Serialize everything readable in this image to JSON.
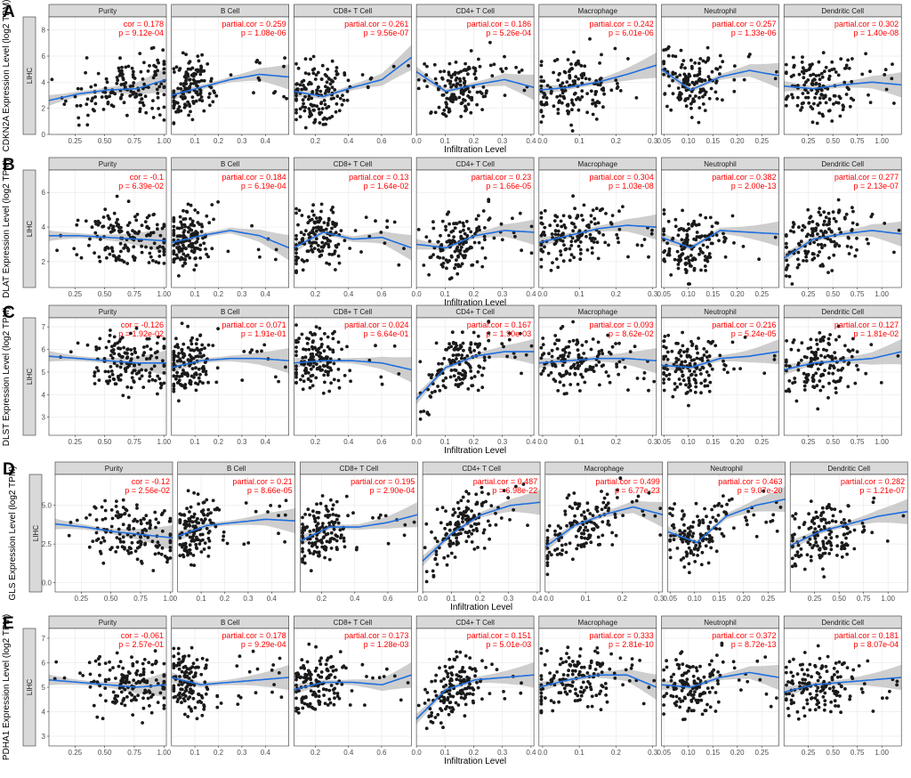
{
  "panels": [
    {
      "letter": "A",
      "ylabel": "CDKN2A Expression Level (log2 TPM)",
      "cancer": "LIHC",
      "xlabel": "Infiltration Level",
      "ylim": [
        0,
        9
      ],
      "yticks": [
        0,
        2,
        4,
        6,
        8
      ],
      "ytick_labels": [
        "0",
        "2",
        "4",
        "6",
        "8"
      ],
      "trends": [
        [
          2.6,
          3.1,
          3.4,
          3.5,
          4.2
        ],
        [
          3.0,
          3.6,
          4.2,
          4.6,
          4.4
        ],
        [
          3.3,
          2.9,
          3.6,
          4.2,
          5.9
        ],
        [
          4.8,
          3.3,
          3.8,
          4.2,
          3.6
        ],
        [
          3.4,
          3.6,
          4.0,
          4.6,
          5.3
        ],
        [
          5.0,
          3.4,
          4.4,
          4.9,
          4.5
        ],
        [
          3.7,
          3.5,
          3.8,
          4.0,
          3.8
        ]
      ],
      "stats": [
        [
          "cor = 0.178",
          "p = 9.12e-04"
        ],
        [
          "partial.cor = 0.259",
          "p = 1.08e-06"
        ],
        [
          "partial.cor = 0.261",
          "p = 9.56e-07"
        ],
        [
          "partial.cor = 0.186",
          "p = 5.26e-04"
        ],
        [
          "partial.cor = 0.242",
          "p = 6.01e-06"
        ],
        [
          "partial.cor = 0.257",
          "p = 1.33e-06"
        ],
        [
          "partial.cor = 0.302",
          "p = 1.40e-08"
        ]
      ]
    },
    {
      "letter": "B",
      "ylabel": "DLAT Expression Level (log2 TPM)",
      "cancer": "LIHC",
      "xlabel": "Infiltration Level",
      "ylim": [
        0.5,
        7.3
      ],
      "yticks": [
        2,
        4,
        6
      ],
      "ytick_labels": [
        "2",
        "4",
        "6"
      ],
      "trends": [
        [
          3.5,
          3.5,
          3.4,
          3.3,
          3.2
        ],
        [
          3.1,
          3.5,
          3.8,
          3.5,
          2.8
        ],
        [
          2.8,
          3.7,
          3.3,
          3.4,
          2.8
        ],
        [
          3.0,
          2.8,
          3.5,
          3.8,
          3.7
        ],
        [
          3.1,
          3.5,
          3.9,
          4.1,
          4.0
        ],
        [
          3.4,
          2.8,
          3.8,
          3.7,
          3.6
        ],
        [
          2.2,
          3.3,
          3.6,
          3.8,
          3.6
        ]
      ],
      "stats": [
        [
          "cor = -0.1",
          "p = 6.39e-02"
        ],
        [
          "partial.cor = 0.184",
          "p = 6.19e-04"
        ],
        [
          "partial.cor = 0.13",
          "p = 1.64e-02"
        ],
        [
          "partial.cor = 0.23",
          "p = 1.66e-05"
        ],
        [
          "partial.cor = 0.304",
          "p = 1.03e-08"
        ],
        [
          "partial.cor = 0.382",
          "p = 2.00e-13"
        ],
        [
          "partial.cor = 0.277",
          "p = 2.13e-07"
        ]
      ]
    },
    {
      "letter": "C",
      "ylabel": "DLST Expression Level (log2 TPM)",
      "cancer": "LIHC",
      "xlabel": "Infiltration Level",
      "ylim": [
        2.2,
        7.4
      ],
      "yticks": [
        3,
        4,
        5,
        6,
        7
      ],
      "ytick_labels": [
        "3",
        "4",
        "5",
        "6",
        "7"
      ],
      "trends": [
        [
          5.7,
          5.6,
          5.5,
          5.4,
          5.4
        ],
        [
          5.2,
          5.5,
          5.6,
          5.6,
          5.5
        ],
        [
          5.4,
          5.5,
          5.5,
          5.4,
          5.1
        ],
        [
          3.8,
          5.2,
          5.7,
          5.9,
          5.9
        ],
        [
          5.4,
          5.5,
          5.6,
          5.6,
          5.5
        ],
        [
          5.3,
          5.2,
          5.6,
          5.7,
          5.9
        ],
        [
          5.1,
          5.4,
          5.5,
          5.6,
          5.9
        ]
      ],
      "stats": [
        [
          "cor = -0.126",
          "p = 1.92e-02"
        ],
        [
          "partial.cor = 0.071",
          "p = 1.91e-01"
        ],
        [
          "partial.cor = 0.024",
          "p = 6.64e-01"
        ],
        [
          "partial.cor = 0.167",
          "p = 1.90e-03"
        ],
        [
          "partial.cor = 0.093",
          "p = 8.62e-02"
        ],
        [
          "partial.cor = 0.216",
          "p = 5.24e-05"
        ],
        [
          "partial.cor = 0.127",
          "p = 1.81e-02"
        ]
      ]
    },
    {
      "letter": "D",
      "ylabel": "GLS Expression Level (log2 TPM)",
      "cancer": "LIHC",
      "xlabel": "Infiltration Level",
      "ylim": [
        -0.6,
        7.0
      ],
      "yticks": [
        0.0,
        2.5,
        5.0
      ],
      "ytick_labels": [
        "0.0",
        "2.5",
        "5.0"
      ],
      "trends": [
        [
          3.8,
          3.6,
          3.3,
          3.1,
          2.9
        ],
        [
          3.0,
          3.7,
          3.9,
          4.1,
          4.0
        ],
        [
          2.7,
          3.6,
          3.6,
          3.9,
          4.4
        ],
        [
          1.4,
          3.2,
          4.4,
          5.0,
          5.2
        ],
        [
          2.3,
          3.7,
          4.4,
          4.9,
          4.4
        ],
        [
          3.3,
          2.6,
          4.3,
          5.0,
          5.4
        ],
        [
          2.4,
          3.3,
          3.8,
          4.3,
          4.6
        ]
      ],
      "stats": [
        [
          "cor = -0.12",
          "p = 2.56e-02"
        ],
        [
          "partial.cor = 0.21",
          "p = 8.66e-05"
        ],
        [
          "partial.cor = 0.195",
          "p = 2.90e-04"
        ],
        [
          "partial.cor = 0.487",
          "p = 6.98e-22"
        ],
        [
          "partial.cor = 0.499",
          "p = 6.77e-23"
        ],
        [
          "partial.cor = 0.463",
          "p = 9.07e-20"
        ],
        [
          "partial.cor = 0.282",
          "p = 1.21e-07"
        ]
      ]
    },
    {
      "letter": "E",
      "ylabel": "PDHA1 Expression Level (log2 TPM)",
      "cancer": "LIHC",
      "xlabel": "Infiltration Level",
      "ylim": [
        2.6,
        7.4
      ],
      "yticks": [
        3,
        4,
        5,
        6,
        7
      ],
      "ytick_labels": [
        "3",
        "4",
        "5",
        "6",
        "7"
      ],
      "trends": [
        [
          5.3,
          5.2,
          5.1,
          5.0,
          5.1
        ],
        [
          5.4,
          5.1,
          5.2,
          5.3,
          5.4
        ],
        [
          4.9,
          5.2,
          5.2,
          5.1,
          5.5
        ],
        [
          3.7,
          4.9,
          5.3,
          5.4,
          5.5
        ],
        [
          5.0,
          5.3,
          5.5,
          5.5,
          5.0
        ],
        [
          5.1,
          5.0,
          5.4,
          5.6,
          5.4
        ],
        [
          4.8,
          5.1,
          5.2,
          5.3,
          5.4
        ]
      ],
      "stats": [
        [
          "cor = -0.061",
          "p = 2.57e-01"
        ],
        [
          "partial.cor = 0.178",
          "p = 9.29e-04"
        ],
        [
          "partial.cor = 0.173",
          "p = 1.28e-03"
        ],
        [
          "partial.cor = 0.151",
          "p = 5.01e-03"
        ],
        [
          "partial.cor = 0.333",
          "p = 2.81e-10"
        ],
        [
          "partial.cor = 0.372",
          "p = 8.72e-13"
        ],
        [
          "partial.cor = 0.181",
          "p = 8.07e-04"
        ]
      ]
    }
  ],
  "cells": [
    {
      "name": "Purity",
      "xlim": [
        0.03,
        1.02
      ],
      "xticks": [
        0.25,
        0.5,
        0.75,
        1.0
      ],
      "xtick_labels": [
        "0.25",
        "0.50",
        "0.75",
        "1.00"
      ]
    },
    {
      "name": "B Cell",
      "xlim": [
        0.0,
        0.5
      ],
      "xticks": [
        0.1,
        0.2,
        0.3,
        0.4
      ],
      "xtick_labels": [
        "0.1",
        "0.2",
        "0.3",
        "0.4"
      ]
    },
    {
      "name": "CD8+ T Cell",
      "xlim": [
        0.07,
        0.78
      ],
      "xticks": [
        0.2,
        0.4,
        0.6
      ],
      "xtick_labels": [
        "0.2",
        "0.4",
        "0.6"
      ]
    },
    {
      "name": "CD4+ T Cell",
      "xlim": [
        0.0,
        0.41
      ],
      "xticks": [
        0.0,
        0.1,
        0.2,
        0.3,
        0.4
      ],
      "xtick_labels": [
        "0.0",
        "0.1",
        "0.2",
        "0.3",
        "0.4"
      ]
    },
    {
      "name": "Macrophage",
      "xlim": [
        -0.01,
        0.31
      ],
      "xticks": [
        0.0,
        0.1,
        0.2,
        0.3
      ],
      "xtick_labels": [
        "0.0",
        "0.1",
        "0.2",
        "0.3"
      ]
    },
    {
      "name": "Neutrophil",
      "xlim": [
        0.045,
        0.285
      ],
      "xticks": [
        0.05,
        0.1,
        0.15,
        0.2,
        0.25
      ],
      "xtick_labels": [
        "0.05",
        "0.10",
        "0.15",
        "0.20",
        "0.25"
      ]
    },
    {
      "name": "Dendritic Cell",
      "xlim": [
        0.0,
        1.2
      ],
      "xticks": [
        0.25,
        0.5,
        0.75,
        1.0
      ],
      "xtick_labels": [
        "0.25",
        "0.50",
        "0.75",
        "1.00"
      ]
    }
  ],
  "style": {
    "point_color": "#1a1a1a",
    "trend_color": "#1f6fe0",
    "band_color": "#bdbdbd",
    "stat_color": "#ff0000",
    "strip_fill": "#d9d9d9",
    "panel_bg": "#ffffff",
    "grid_color": "#ebebeb"
  },
  "chart_data": {
    "type": "scatter",
    "description_free": true,
    "panels": [
      "A",
      "B",
      "C",
      "D",
      "E"
    ],
    "genes": [
      "CDKN2A",
      "DLAT",
      "DLST",
      "GLS",
      "PDHA1"
    ],
    "cells": [
      "Purity",
      "B Cell",
      "CD8+ T Cell",
      "CD4+ T Cell",
      "Macrophage",
      "Neutrophil",
      "Dendritic Cell"
    ],
    "xlabel": "Infiltration Level",
    "cancer": "LIHC",
    "points_per_facet": 150
  }
}
